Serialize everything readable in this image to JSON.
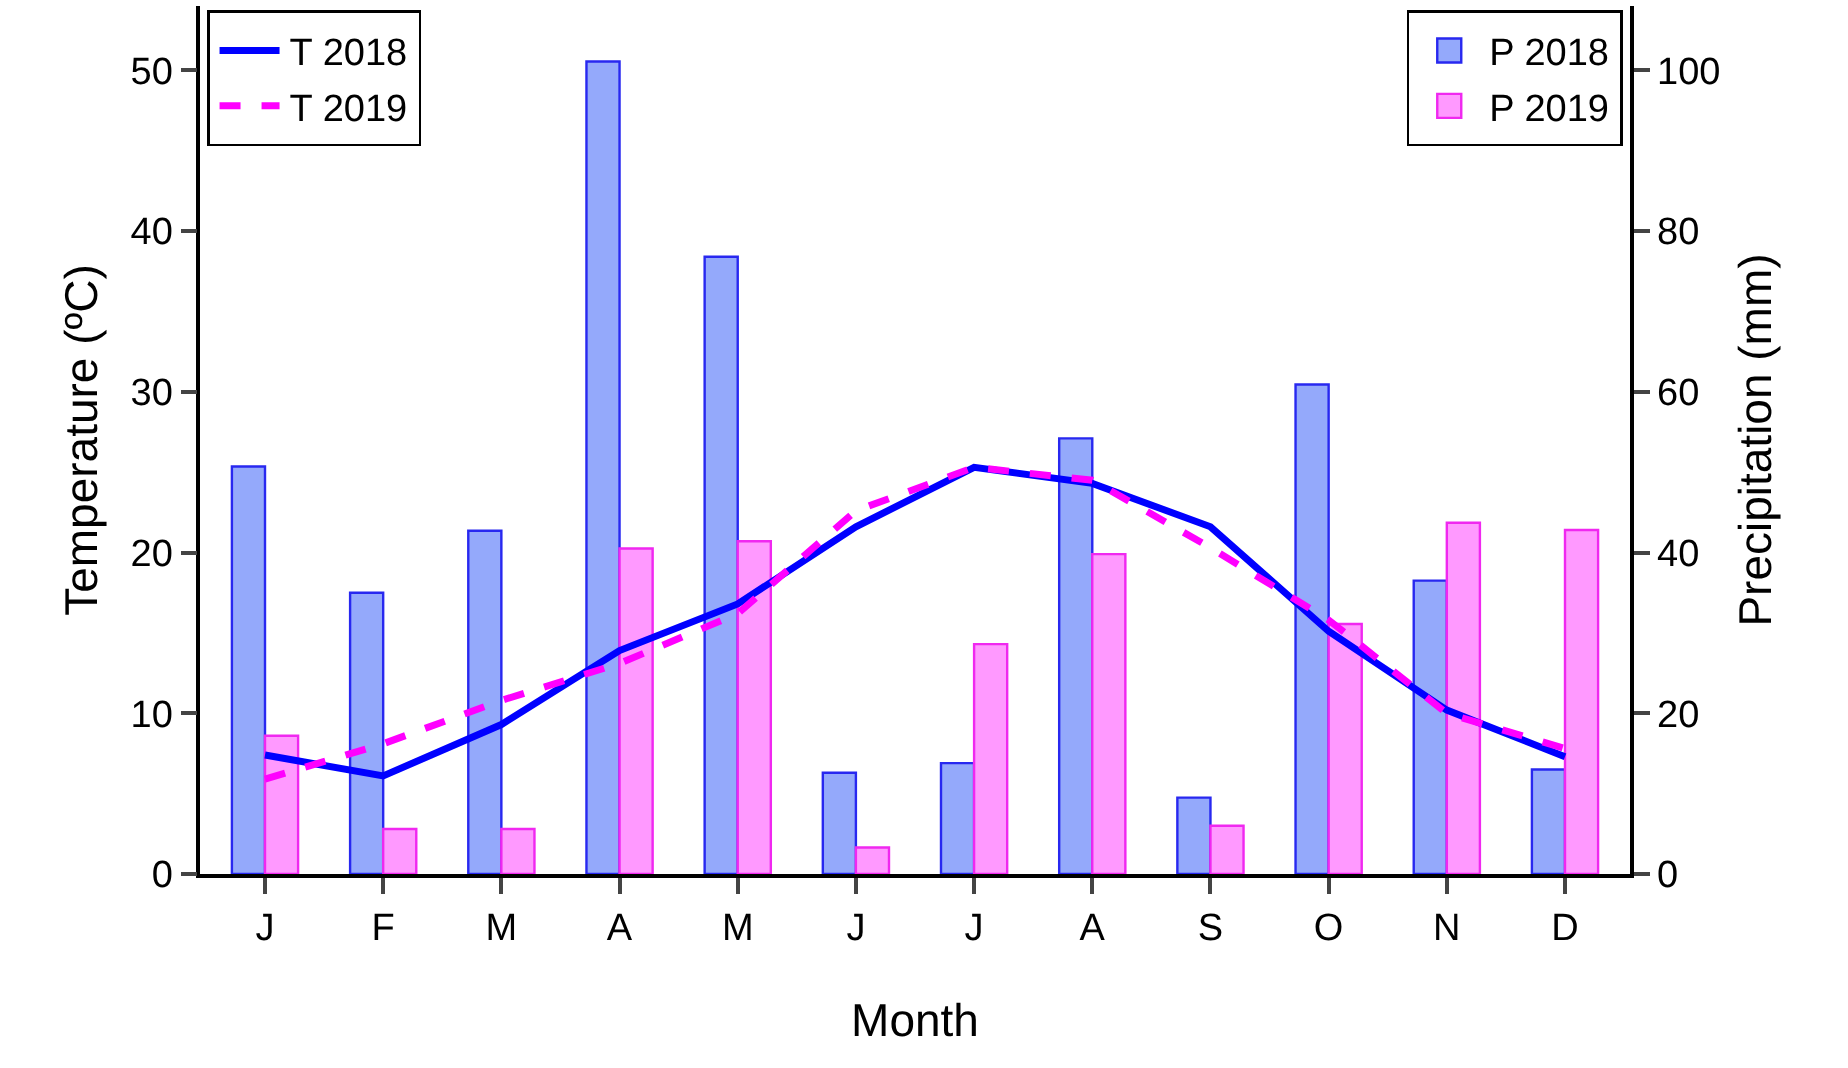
{
  "chart_data": {
    "type": "bar",
    "xlabel": "Month",
    "ylabel": "Temperature (ºC)",
    "y2label": "Precipitation (mm)",
    "categories": [
      "J",
      "F",
      "M",
      "A",
      "M",
      "J",
      "J",
      "A",
      "S",
      "O",
      "N",
      "D"
    ],
    "series": [
      {
        "name": "T 2018",
        "type": "line",
        "axis": "y",
        "color": "#0000ff",
        "line_style": "solid",
        "values": [
          7.4,
          6.1,
          9.3,
          13.9,
          16.8,
          21.6,
          25.3,
          24.3,
          21.6,
          15.1,
          10.2,
          7.3
        ]
      },
      {
        "name": "T 2019",
        "type": "line",
        "axis": "y",
        "color": "#ff00ff",
        "line_style": "dashed",
        "values": [
          5.9,
          8.1,
          10.8,
          13.1,
          16.2,
          22.6,
          25.3,
          24.5,
          20.3,
          15.8,
          10.0,
          7.8
        ]
      },
      {
        "name": "P 2018",
        "axis": "y2",
        "color": "#94a9fb",
        "values": [
          50.7,
          35.0,
          42.7,
          101.1,
          76.8,
          12.6,
          13.8,
          54.2,
          9.5,
          60.9,
          36.5,
          13.0
        ]
      },
      {
        "name": "P 2019",
        "axis": "y2",
        "color": "#ff99ff",
        "values": [
          17.2,
          5.6,
          5.6,
          40.5,
          41.4,
          3.3,
          28.6,
          39.8,
          6.0,
          31.1,
          43.7,
          42.8
        ]
      }
    ],
    "ylim": [
      0,
      54
    ],
    "yticks": [
      0,
      10,
      20,
      30,
      40,
      50
    ],
    "y2lim": [
      0,
      108
    ],
    "y2ticks": [
      0,
      20,
      40,
      60,
      80,
      100
    ],
    "grid": false,
    "legend": "top",
    "marker": "none"
  }
}
